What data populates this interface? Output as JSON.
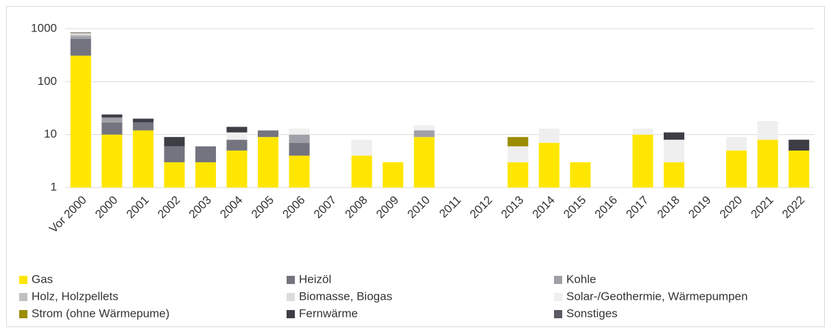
{
  "chart_data": {
    "type": "bar",
    "stacked": true,
    "log_scale": true,
    "grid": true,
    "categories": [
      "Vor 2000",
      "2000",
      "2001",
      "2002",
      "2003",
      "2004",
      "2005",
      "2006",
      "2007",
      "2008",
      "2009",
      "2010",
      "2011",
      "2012",
      "2013",
      "2014",
      "2015",
      "2016",
      "2017",
      "2018",
      "2019",
      "2020",
      "2021",
      "2022"
    ],
    "series": [
      {
        "name": "Gas",
        "color": "#ffe600",
        "values": [
          310,
          10,
          12,
          3,
          3,
          5,
          9,
          4,
          null,
          4,
          3,
          9,
          null,
          null,
          3,
          7,
          3,
          null,
          10,
          3,
          null,
          5,
          8,
          5
        ]
      },
      {
        "name": "Heizöl",
        "color": "#747480",
        "values": [
          330,
          7,
          5,
          3,
          3,
          3,
          3,
          3,
          null,
          null,
          null,
          null,
          null,
          null,
          null,
          null,
          null,
          null,
          null,
          null,
          null,
          null,
          null,
          null
        ]
      },
      {
        "name": "Kohle",
        "color": "#a0a0a8",
        "values": [
          80,
          4,
          null,
          null,
          null,
          null,
          null,
          3,
          null,
          null,
          null,
          3,
          null,
          null,
          null,
          null,
          null,
          null,
          null,
          null,
          null,
          null,
          null,
          null
        ]
      },
      {
        "name": "Holz, Holzpellets",
        "color": "#c0c0c4",
        "values": [
          50,
          null,
          null,
          null,
          null,
          null,
          null,
          null,
          null,
          null,
          null,
          null,
          null,
          null,
          null,
          null,
          null,
          null,
          null,
          null,
          null,
          null,
          null,
          null
        ]
      },
      {
        "name": "Biomasse, Biogas",
        "color": "#dcdcdc",
        "values": [
          30,
          null,
          null,
          null,
          null,
          null,
          null,
          null,
          null,
          null,
          null,
          null,
          null,
          null,
          null,
          null,
          null,
          null,
          null,
          null,
          null,
          null,
          null,
          null
        ]
      },
      {
        "name": "Solar-/Geothermie, Wärmepumpen",
        "color": "#efefef",
        "values": [
          20,
          null,
          null,
          null,
          null,
          3,
          null,
          3,
          null,
          4,
          null,
          3,
          null,
          null,
          3,
          6,
          null,
          null,
          3,
          5,
          null,
          4,
          10,
          null
        ]
      },
      {
        "name": "Strom (ohne Wärmepume)",
        "color": "#9b8c00",
        "values": [
          10,
          null,
          null,
          null,
          null,
          null,
          null,
          null,
          null,
          null,
          null,
          null,
          null,
          null,
          3,
          null,
          null,
          null,
          null,
          null,
          null,
          null,
          null,
          null
        ]
      },
      {
        "name": "Fernwärme",
        "color": "#3d3d46",
        "values": [
          20,
          3,
          3,
          3,
          null,
          3,
          null,
          null,
          null,
          null,
          null,
          null,
          null,
          null,
          null,
          null,
          null,
          null,
          null,
          3,
          null,
          null,
          null,
          3
        ]
      },
      {
        "name": "Sonstiges",
        "color": "#5a5a66",
        "values": [
          null,
          null,
          null,
          null,
          null,
          null,
          null,
          null,
          null,
          null,
          null,
          null,
          null,
          null,
          null,
          null,
          null,
          null,
          null,
          null,
          null,
          null,
          null,
          null
        ]
      }
    ],
    "ylim": [
      1,
      1000
    ],
    "yticks": [
      1,
      10,
      100,
      1000
    ]
  }
}
